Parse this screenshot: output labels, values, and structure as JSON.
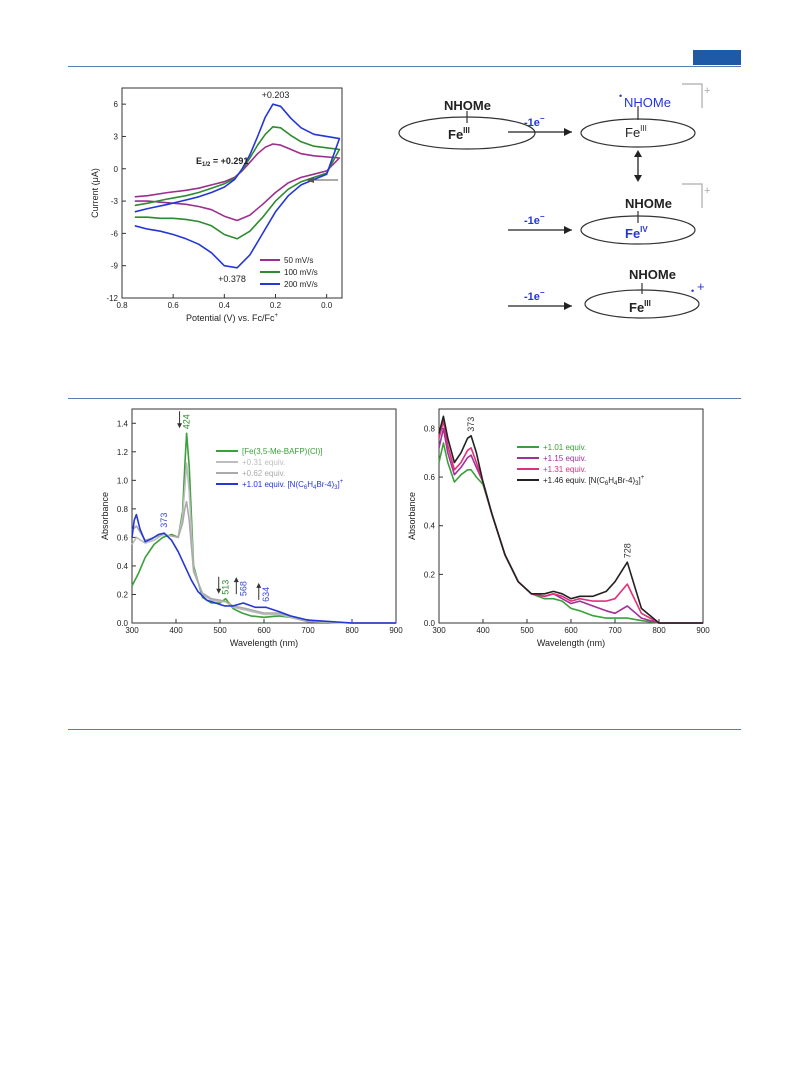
{
  "cv_chart": {
    "type": "line",
    "xlabel": "Potential (V) vs. Fc/Fc",
    "xlabel_sup": "+",
    "ylabel": "Current (μA)",
    "xlim": [
      0.8,
      -0.06
    ],
    "ylim": [
      -12,
      7.5
    ],
    "xticks": [
      "0.8",
      "0.6",
      "0.4",
      "0.2",
      "0.0"
    ],
    "xtick_values": [
      0.8,
      0.6,
      0.4,
      0.2,
      0.0
    ],
    "yticks": [
      "6",
      "3",
      "0",
      "-3",
      "-6",
      "-9",
      "-12"
    ],
    "ytick_values": [
      6,
      3,
      0,
      -3,
      -6,
      -9,
      -12
    ],
    "annotations": {
      "anodic_peak": "+0.203",
      "cathodic_peak": "+0.378",
      "e_half": "E",
      "e_half_sub": "1/2",
      "e_half_value": " = +0.291"
    },
    "legend_position": "bottom-right",
    "series": [
      {
        "name": "50 mV/s",
        "color": "#9b2f8f",
        "x": [
          0.75,
          0.7,
          0.62,
          0.55,
          0.5,
          0.45,
          0.4,
          0.36,
          0.33,
          0.3,
          0.27,
          0.24,
          0.21,
          0.18,
          0.14,
          0.1,
          0.05,
          -0.05,
          0.0,
          0.05,
          0.1,
          0.15,
          0.2,
          0.25,
          0.3,
          0.35,
          0.4,
          0.45,
          0.5,
          0.55,
          0.6,
          0.65,
          0.7,
          0.75
        ],
        "y": [
          -2.6,
          -2.5,
          -2.2,
          -2.0,
          -1.8,
          -1.5,
          -1.2,
          -0.8,
          -0.2,
          0.6,
          1.4,
          2.0,
          2.3,
          2.2,
          1.8,
          1.4,
          1.2,
          1.0,
          -0.2,
          -0.5,
          -0.8,
          -1.3,
          -2.2,
          -3.3,
          -4.3,
          -4.8,
          -4.4,
          -3.8,
          -3.5,
          -3.3,
          -3.2,
          -3.1,
          -3.0,
          -3.0
        ]
      },
      {
        "name": "100 mV/s",
        "color": "#2e8b2e",
        "x": [
          0.75,
          0.7,
          0.62,
          0.55,
          0.5,
          0.45,
          0.4,
          0.36,
          0.33,
          0.3,
          0.27,
          0.24,
          0.21,
          0.18,
          0.14,
          0.1,
          0.05,
          -0.05,
          0.0,
          0.05,
          0.1,
          0.15,
          0.2,
          0.25,
          0.3,
          0.35,
          0.4,
          0.45,
          0.5,
          0.55,
          0.6,
          0.65,
          0.7,
          0.75
        ],
        "y": [
          -3.4,
          -3.2,
          -2.8,
          -2.5,
          -2.2,
          -1.8,
          -1.4,
          -0.9,
          -0.1,
          1.0,
          2.2,
          3.2,
          3.9,
          3.8,
          3.1,
          2.5,
          2.1,
          1.8,
          -0.4,
          -0.8,
          -1.2,
          -1.9,
          -3.0,
          -4.5,
          -5.8,
          -6.5,
          -6.1,
          -5.3,
          -4.9,
          -4.7,
          -4.6,
          -4.6,
          -4.5,
          -4.5
        ]
      },
      {
        "name": "200 mV/s",
        "color": "#2437d6",
        "x": [
          0.75,
          0.7,
          0.62,
          0.55,
          0.5,
          0.45,
          0.4,
          0.36,
          0.33,
          0.3,
          0.27,
          0.24,
          0.21,
          0.18,
          0.14,
          0.1,
          0.05,
          -0.05,
          0.0,
          0.05,
          0.1,
          0.15,
          0.2,
          0.25,
          0.3,
          0.35,
          0.4,
          0.45,
          0.5,
          0.55,
          0.6,
          0.65,
          0.7,
          0.75
        ],
        "y": [
          -4.0,
          -3.7,
          -3.3,
          -2.9,
          -2.6,
          -2.2,
          -1.7,
          -1.0,
          0.0,
          1.3,
          3.0,
          4.8,
          6.0,
          5.8,
          4.7,
          3.8,
          3.2,
          2.8,
          -0.5,
          -1.0,
          -1.5,
          -2.5,
          -4.0,
          -6.0,
          -8.0,
          -9.2,
          -9.0,
          -7.8,
          -7.0,
          -6.5,
          -6.1,
          -5.8,
          -5.6,
          -5.3
        ]
      }
    ]
  },
  "scheme": {
    "ligand": "NHOMe",
    "fe_base": "Fe",
    "fe3_sup": "III",
    "fe4_sup": "IV",
    "arrow_label": "-1e",
    "arrow_label_sup": "−",
    "plus": "+",
    "radical_dot": "•"
  },
  "uv_left": {
    "type": "line",
    "xlabel": "Wavelength (nm)",
    "ylabel": "Absorbance",
    "xlim": [
      300,
      900
    ],
    "ylim": [
      0,
      1.5
    ],
    "xticks": [
      "300",
      "400",
      "500",
      "600",
      "700",
      "800",
      "900"
    ],
    "xtick_values": [
      300,
      400,
      500,
      600,
      700,
      800,
      900
    ],
    "yticks": [
      "0.0",
      "0.2",
      "0.4",
      "0.6",
      "0.8",
      "1.0",
      "1.2",
      "1.4"
    ],
    "ytick_values": [
      0,
      0.2,
      0.4,
      0.6,
      0.8,
      1.0,
      1.2,
      1.4
    ],
    "peak_labels": [
      {
        "text": "424",
        "x": 424,
        "y": 1.33,
        "color": "#2e8b2e",
        "arrow": "down"
      },
      {
        "text": "373",
        "x": 373,
        "y": 0.64,
        "color": "#3a49d8",
        "arrow": "none"
      },
      {
        "text": "513",
        "x": 513,
        "y": 0.17,
        "color": "#2e8b2e",
        "arrow": "down"
      },
      {
        "text": "568",
        "x": 553,
        "y": 0.16,
        "color": "#3a49d8",
        "arrow": "up"
      },
      {
        "text": "634",
        "x": 604,
        "y": 0.12,
        "color": "#3a49d8",
        "arrow": "up"
      }
    ],
    "legend_position": "top-right",
    "series": [
      {
        "name": "[Fe(3,5-Me-BAFP)(Cl)]",
        "color": "#3aa03a",
        "x": [
          300,
          315,
          330,
          350,
          370,
          390,
          405,
          415,
          420,
          424,
          430,
          440,
          460,
          480,
          500,
          513,
          530,
          550,
          570,
          600,
          634,
          660,
          700,
          800,
          900
        ],
        "y": [
          0.26,
          0.35,
          0.46,
          0.55,
          0.6,
          0.62,
          0.6,
          0.78,
          1.1,
          1.33,
          1.1,
          0.4,
          0.18,
          0.14,
          0.14,
          0.17,
          0.1,
          0.07,
          0.05,
          0.04,
          0.05,
          0.04,
          0.01,
          0.0,
          0.0
        ]
      },
      {
        "name": "+0.31 equiv.",
        "color": "#bdbdbd",
        "x": [
          300,
          310,
          330,
          350,
          370,
          390,
          405,
          415,
          420,
          424,
          430,
          440,
          460,
          480,
          500,
          513,
          530,
          560,
          600,
          634,
          700,
          800,
          900
        ],
        "y": [
          0.55,
          0.6,
          0.56,
          0.58,
          0.62,
          0.61,
          0.6,
          0.75,
          0.95,
          1.12,
          0.92,
          0.38,
          0.2,
          0.16,
          0.15,
          0.15,
          0.11,
          0.09,
          0.06,
          0.06,
          0.01,
          0.0,
          0.0
        ]
      },
      {
        "name": "+0.62 equiv.",
        "color": "#aaaaaa",
        "x": [
          300,
          310,
          330,
          350,
          370,
          390,
          405,
          415,
          420,
          424,
          430,
          440,
          460,
          480,
          500,
          513,
          530,
          560,
          600,
          634,
          700,
          800,
          900
        ],
        "y": [
          0.65,
          0.68,
          0.58,
          0.6,
          0.62,
          0.61,
          0.6,
          0.7,
          0.8,
          0.85,
          0.72,
          0.36,
          0.21,
          0.17,
          0.16,
          0.15,
          0.12,
          0.1,
          0.07,
          0.07,
          0.01,
          0.0,
          0.0
        ]
      },
      {
        "name": "+1.01 equiv. [N(C6H4Br-4)3]+",
        "color": "#2437d6",
        "x": [
          300,
          305,
          310,
          318,
          330,
          345,
          360,
          373,
          390,
          405,
          420,
          435,
          450,
          470,
          490,
          510,
          530,
          553,
          580,
          604,
          634,
          660,
          700,
          800,
          900
        ],
        "y": [
          0.6,
          0.72,
          0.76,
          0.66,
          0.57,
          0.59,
          0.62,
          0.63,
          0.58,
          0.5,
          0.4,
          0.3,
          0.22,
          0.16,
          0.14,
          0.12,
          0.12,
          0.14,
          0.11,
          0.11,
          0.08,
          0.05,
          0.02,
          0.0,
          0.0
        ]
      }
    ],
    "legend_labels": [
      {
        "text": "[Fe(3,5-Me-BAFP)(Cl)]"
      },
      {
        "text": "+0.31 equiv."
      },
      {
        "text": "+0.62 equiv."
      },
      {
        "text": "+1.01 equiv. [N(C",
        "sub1": "6",
        "mid1": "H",
        "sub2": "4",
        "mid2": "Br-4)",
        "sub3": "3",
        "tail": "]",
        "sup": "+"
      }
    ]
  },
  "uv_right": {
    "type": "line",
    "xlabel": "Wavelength (nm)",
    "ylabel": "Absorbance",
    "xlim": [
      300,
      900
    ],
    "ylim": [
      0,
      0.88
    ],
    "xticks": [
      "300",
      "400",
      "500",
      "600",
      "700",
      "800",
      "900"
    ],
    "xtick_values": [
      300,
      400,
      500,
      600,
      700,
      800,
      900
    ],
    "yticks": [
      "0.0",
      "0.2",
      "0.4",
      "0.6",
      "0.8"
    ],
    "ytick_values": [
      0,
      0.2,
      0.4,
      0.6,
      0.8
    ],
    "peak_labels": [
      {
        "text": "373",
        "x": 373,
        "y": 0.77,
        "color": "#333333"
      },
      {
        "text": "728",
        "x": 728,
        "y": 0.25,
        "color": "#333333"
      }
    ],
    "legend_position": "top-right",
    "series": [
      {
        "name": "+1.01 equiv.",
        "color": "#3aa03a",
        "x": [
          300,
          310,
          320,
          335,
          350,
          365,
          373,
          385,
          400,
          420,
          450,
          480,
          510,
          540,
          560,
          580,
          600,
          620,
          650,
          680,
          700,
          728,
          760,
          800,
          900
        ],
        "y": [
          0.66,
          0.74,
          0.66,
          0.58,
          0.61,
          0.63,
          0.63,
          0.6,
          0.57,
          0.45,
          0.28,
          0.17,
          0.12,
          0.1,
          0.1,
          0.09,
          0.06,
          0.05,
          0.03,
          0.02,
          0.02,
          0.02,
          0.01,
          0.0,
          0.0
        ]
      },
      {
        "name": "+1.15 equiv.",
        "color": "#a0309a",
        "x": [
          300,
          310,
          320,
          335,
          350,
          365,
          373,
          385,
          400,
          420,
          450,
          480,
          510,
          540,
          560,
          580,
          600,
          620,
          650,
          680,
          700,
          728,
          760,
          800,
          900
        ],
        "y": [
          0.72,
          0.8,
          0.7,
          0.61,
          0.64,
          0.68,
          0.69,
          0.64,
          0.58,
          0.45,
          0.28,
          0.17,
          0.12,
          0.11,
          0.12,
          0.1,
          0.08,
          0.09,
          0.07,
          0.05,
          0.04,
          0.07,
          0.02,
          0.0,
          0.0
        ]
      },
      {
        "name": "+1.31 equiv.",
        "color": "#e0307a",
        "x": [
          300,
          310,
          320,
          335,
          350,
          365,
          373,
          385,
          400,
          420,
          450,
          480,
          510,
          540,
          560,
          580,
          600,
          620,
          650,
          680,
          700,
          728,
          760,
          800,
          900
        ],
        "y": [
          0.76,
          0.83,
          0.73,
          0.63,
          0.66,
          0.71,
          0.72,
          0.66,
          0.58,
          0.45,
          0.28,
          0.17,
          0.12,
          0.11,
          0.12,
          0.11,
          0.09,
          0.1,
          0.09,
          0.09,
          0.1,
          0.16,
          0.04,
          0.0,
          0.0
        ]
      },
      {
        "name": "+1.46 equiv. [N(C6H4Br-4)3]+",
        "color": "#222222",
        "x": [
          300,
          310,
          320,
          335,
          350,
          365,
          373,
          385,
          400,
          420,
          450,
          480,
          510,
          540,
          560,
          580,
          600,
          620,
          650,
          680,
          700,
          728,
          760,
          800,
          900
        ],
        "y": [
          0.78,
          0.85,
          0.76,
          0.66,
          0.7,
          0.76,
          0.77,
          0.7,
          0.58,
          0.45,
          0.28,
          0.17,
          0.12,
          0.12,
          0.13,
          0.12,
          0.1,
          0.11,
          0.11,
          0.13,
          0.17,
          0.25,
          0.06,
          0.0,
          0.0
        ]
      }
    ],
    "legend_labels": [
      {
        "text": "+1.01 equiv."
      },
      {
        "text": "+1.15 equiv."
      },
      {
        "text": "+1.31 equiv."
      },
      {
        "text": "+1.46 equiv. [N(C",
        "sub1": "6",
        "mid1": "H",
        "sub2": "4",
        "mid2": "Br-4)",
        "sub3": "3",
        "tail": "]",
        "sup": "+"
      }
    ]
  }
}
